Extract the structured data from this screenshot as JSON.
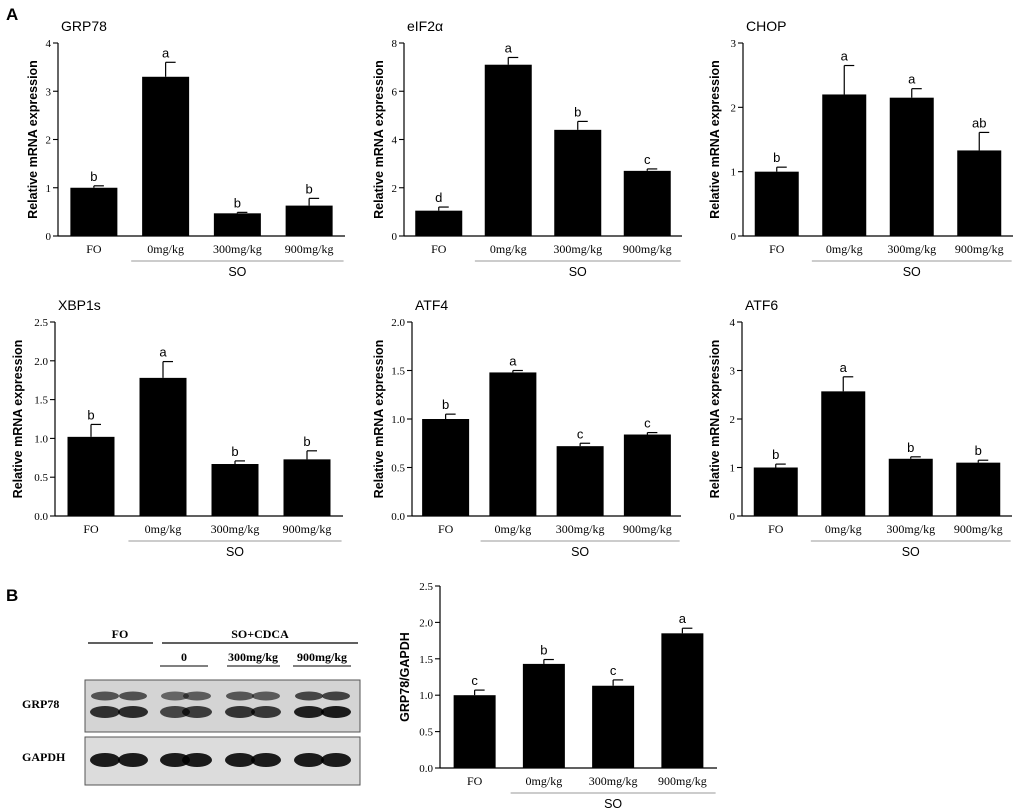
{
  "panels": {
    "a": "A",
    "b": "B"
  },
  "shared": {
    "ylabel": "Relative mRNA expression",
    "group_label": "SO",
    "categories": [
      "FO",
      "0mg/kg",
      "300mg/kg",
      "900mg/kg"
    ]
  },
  "chart_data": [
    {
      "type": "bar",
      "title": "GRP78",
      "ylabel": "Relative mRNA expression",
      "categories": [
        "FO",
        "0mg/kg",
        "300mg/kg",
        "900mg/kg"
      ],
      "values": [
        1.0,
        3.3,
        0.47,
        0.63
      ],
      "errors": [
        0.04,
        0.3,
        0.02,
        0.15
      ],
      "letters": [
        "b",
        "a",
        "b",
        "b"
      ],
      "ylim": [
        0,
        4
      ],
      "yticks": [
        "0",
        "1",
        "2",
        "3",
        "4"
      ],
      "group_label": "SO"
    },
    {
      "type": "bar",
      "title": "eIF2α",
      "ylabel": "Relative mRNA expression",
      "categories": [
        "FO",
        "0mg/kg",
        "300mg/kg",
        "900mg/kg"
      ],
      "values": [
        1.05,
        7.1,
        4.4,
        2.7
      ],
      "errors": [
        0.15,
        0.3,
        0.35,
        0.08
      ],
      "letters": [
        "d",
        "a",
        "b",
        "c"
      ],
      "ylim": [
        0,
        8
      ],
      "yticks": [
        "0",
        "2",
        "4",
        "6",
        "8"
      ],
      "group_label": "SO"
    },
    {
      "type": "bar",
      "title": "CHOP",
      "ylabel": "Relative mRNA expression",
      "categories": [
        "FO",
        "0mg/kg",
        "300mg/kg",
        "900mg/kg"
      ],
      "values": [
        1.0,
        2.2,
        2.15,
        1.33
      ],
      "errors": [
        0.07,
        0.45,
        0.14,
        0.28
      ],
      "letters": [
        "b",
        "a",
        "a",
        "ab"
      ],
      "ylim": [
        0,
        3
      ],
      "yticks": [
        "0",
        "1",
        "2",
        "3"
      ],
      "group_label": "SO"
    },
    {
      "type": "bar",
      "title": "XBP1s",
      "ylabel": "Relative mRNA expression",
      "categories": [
        "FO",
        "0mg/kg",
        "300mg/kg",
        "900mg/kg"
      ],
      "values": [
        1.02,
        1.78,
        0.67,
        0.73
      ],
      "errors": [
        0.16,
        0.21,
        0.04,
        0.11
      ],
      "letters": [
        "b",
        "a",
        "b",
        "b"
      ],
      "ylim": [
        0,
        2.5
      ],
      "yticks": [
        "0.0",
        "0.5",
        "1.0",
        "1.5",
        "2.0",
        "2.5"
      ],
      "group_label": "SO"
    },
    {
      "type": "bar",
      "title": "ATF4",
      "ylabel": "Relative mRNA expression",
      "categories": [
        "FO",
        "0mg/kg",
        "300mg/kg",
        "900mg/kg"
      ],
      "values": [
        1.0,
        1.48,
        0.72,
        0.84
      ],
      "errors": [
        0.05,
        0.02,
        0.03,
        0.02
      ],
      "letters": [
        "b",
        "a",
        "c",
        "c"
      ],
      "ylim": [
        0,
        2.0
      ],
      "yticks": [
        "0.0",
        "0.5",
        "1.0",
        "1.5",
        "2.0"
      ],
      "group_label": "SO"
    },
    {
      "type": "bar",
      "title": "ATF6",
      "ylabel": "Relative mRNA expression",
      "categories": [
        "FO",
        "0mg/kg",
        "300mg/kg",
        "900mg/kg"
      ],
      "values": [
        1.0,
        2.57,
        1.18,
        1.1
      ],
      "errors": [
        0.07,
        0.3,
        0.04,
        0.05
      ],
      "letters": [
        "b",
        "a",
        "b",
        "b"
      ],
      "ylim": [
        0,
        4
      ],
      "yticks": [
        "0",
        "1",
        "2",
        "3",
        "4"
      ],
      "group_label": "SO"
    },
    {
      "type": "bar",
      "title": "",
      "ylabel": "GRP78/GAPDH",
      "categories": [
        "FO",
        "0mg/kg",
        "300mg/kg",
        "900mg/kg"
      ],
      "values": [
        1.0,
        1.43,
        1.13,
        1.85
      ],
      "errors": [
        0.07,
        0.06,
        0.08,
        0.07
      ],
      "letters": [
        "c",
        "b",
        "c",
        "a"
      ],
      "ylim": [
        0,
        2.5
      ],
      "yticks": [
        "0.0",
        "0.5",
        "1.0",
        "1.5",
        "2.0",
        "2.5"
      ],
      "group_label": "SO"
    }
  ],
  "blot": {
    "header_fo": "FO",
    "header_so": "SO+CDCA",
    "doses": [
      "0",
      "300mg/kg",
      "900mg/kg"
    ],
    "rows": [
      "GRP78",
      "GAPDH"
    ]
  }
}
